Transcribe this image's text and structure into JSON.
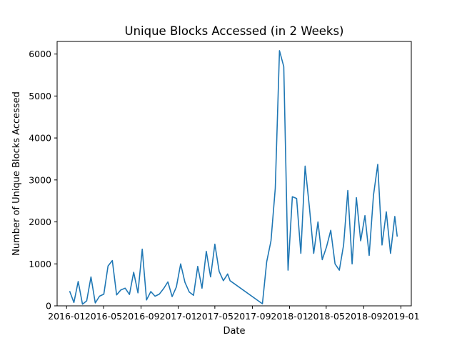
{
  "chart_data": {
    "type": "line",
    "title": "Unique Blocks Accessed (in 2 Weeks)",
    "xlabel": "Date",
    "ylabel": "Number of Unique Blocks Accessed",
    "xlim": [
      "2015-12-01",
      "2019-02-04"
    ],
    "ylim": [
      0,
      6300
    ],
    "x_ticks": [
      "2016-01",
      "2016-05",
      "2016-09",
      "2017-01",
      "2017-05",
      "2017-09",
      "2018-01",
      "2018-05",
      "2018-09",
      "2019-01"
    ],
    "y_ticks": [
      0,
      1000,
      2000,
      3000,
      4000,
      5000,
      6000
    ],
    "grid": false,
    "line_color": "#1f77b4",
    "series": [
      {
        "x": [
          "2016-01-11",
          "2016-01-25",
          "2016-02-08",
          "2016-02-22",
          "2016-03-07",
          "2016-03-21",
          "2016-04-04",
          "2016-04-18",
          "2016-05-02",
          "2016-05-16",
          "2016-05-30",
          "2016-06-13",
          "2016-06-27",
          "2016-07-11",
          "2016-07-25",
          "2016-08-08",
          "2016-08-22",
          "2016-09-05",
          "2016-09-19",
          "2016-10-03",
          "2016-10-17",
          "2016-10-31",
          "2016-11-14",
          "2016-11-28",
          "2016-12-12",
          "2016-12-26",
          "2017-01-09",
          "2017-01-23",
          "2017-02-06",
          "2017-02-20",
          "2017-03-06",
          "2017-03-20",
          "2017-04-03",
          "2017-04-17",
          "2017-05-01",
          "2017-05-15",
          "2017-05-29",
          "2017-06-12",
          "2017-06-20",
          "2017-10-04",
          "2017-10-18",
          "2017-11-01",
          "2017-11-15",
          "2017-11-29",
          "2017-12-13",
          "2017-12-27",
          "2018-01-10",
          "2018-01-24",
          "2018-02-07",
          "2018-02-21",
          "2018-03-07",
          "2018-03-21",
          "2018-04-04",
          "2018-04-18",
          "2018-05-02",
          "2018-05-16",
          "2018-05-30",
          "2018-06-13",
          "2018-06-27",
          "2018-07-11",
          "2018-07-25",
          "2018-08-08",
          "2018-08-22",
          "2018-09-05",
          "2018-09-19",
          "2018-10-03",
          "2018-10-17",
          "2018-10-31",
          "2018-11-14",
          "2018-11-28",
          "2018-12-12",
          "2018-12-20"
        ],
        "y": [
          350,
          80,
          580,
          40,
          120,
          690,
          70,
          230,
          280,
          950,
          1080,
          260,
          380,
          420,
          270,
          800,
          310,
          1350,
          140,
          340,
          230,
          280,
          410,
          570,
          220,
          450,
          1000,
          560,
          330,
          250,
          940,
          420,
          1300,
          690,
          1470,
          820,
          600,
          760,
          600,
          50,
          1050,
          1550,
          2800,
          6080,
          5700,
          850,
          2600,
          2560,
          1250,
          3330,
          2350,
          1250,
          2000,
          1100,
          1400,
          1800,
          1000,
          850,
          1450,
          2750,
          1000,
          2580,
          1550,
          2150,
          1200,
          2630,
          3370,
          1450,
          2240,
          1250,
          2130,
          1650
        ]
      }
    ]
  }
}
